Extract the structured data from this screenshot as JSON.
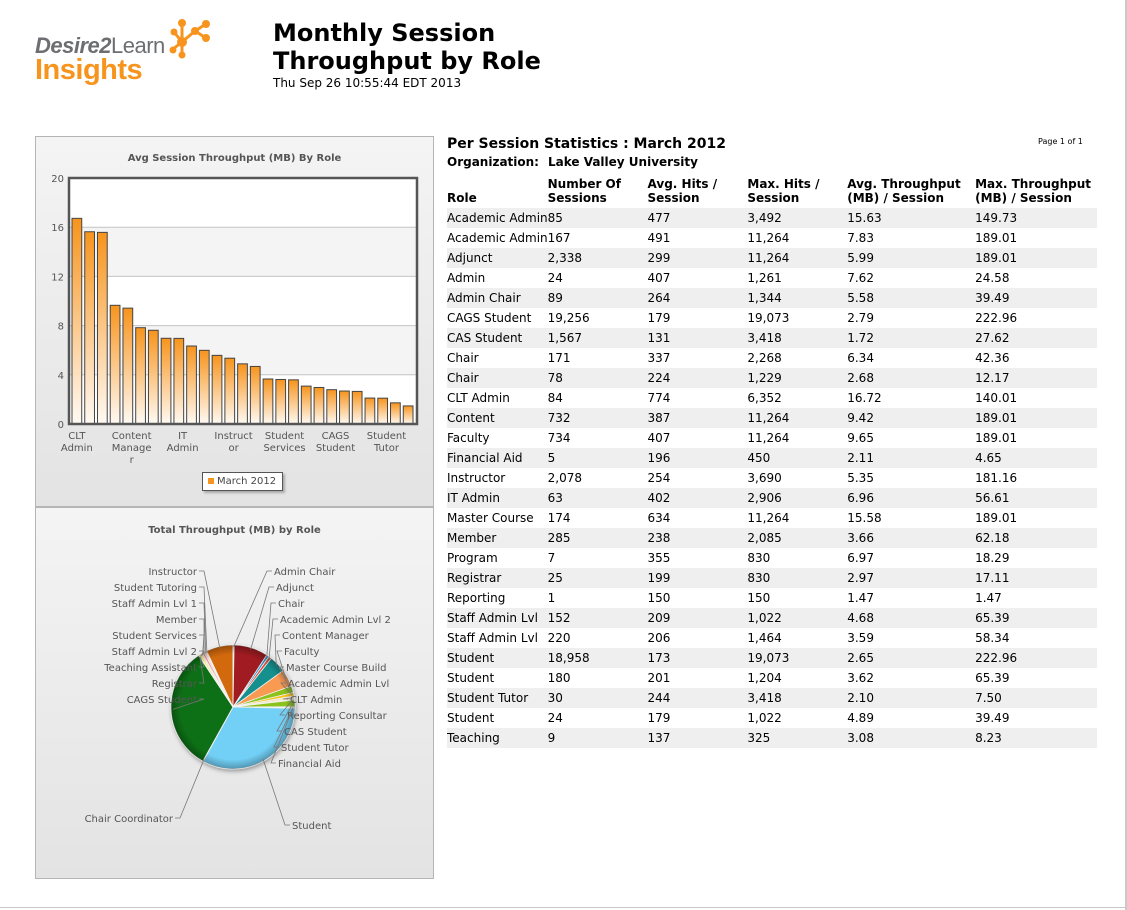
{
  "header": {
    "logo_brand": "Desire2",
    "logo_brand_suffix": "Learn",
    "logo_product": "Insights",
    "title_line1": "Monthly Session",
    "title_line2": "Throughput by Role",
    "timestamp": "Thu Sep 26 10:55:44 EDT 2013"
  },
  "colors": {
    "accent": "#f7941d",
    "logo_gray": "#6d6e71"
  },
  "report": {
    "heading": "Per Session Statistics : March 2012",
    "org_label": "Organization:",
    "org_value": "Lake Valley University",
    "page_label": "Page 1 of 1",
    "columns": [
      "Role",
      "Number Of Sessions",
      "Avg. Hits / Session",
      "Max. Hits / Session",
      "Avg. Throughput (MB) / Session",
      "Max. Throughput (MB) / Session"
    ],
    "rows": [
      [
        "Academic Admin",
        "85",
        "477",
        "3,492",
        "15.63",
        "149.73"
      ],
      [
        "Academic Admin",
        "167",
        "491",
        "11,264",
        "7.83",
        "189.01"
      ],
      [
        "Adjunct",
        "2,338",
        "299",
        "11,264",
        "5.99",
        "189.01"
      ],
      [
        "Admin",
        "24",
        "407",
        "1,261",
        "7.62",
        "24.58"
      ],
      [
        "Admin Chair",
        "89",
        "264",
        "1,344",
        "5.58",
        "39.49"
      ],
      [
        "CAGS Student",
        "19,256",
        "179",
        "19,073",
        "2.79",
        "222.96"
      ],
      [
        "CAS Student",
        "1,567",
        "131",
        "3,418",
        "1.72",
        "27.62"
      ],
      [
        "Chair",
        "171",
        "337",
        "2,268",
        "6.34",
        "42.36"
      ],
      [
        "Chair",
        "78",
        "224",
        "1,229",
        "2.68",
        "12.17"
      ],
      [
        "CLT Admin",
        "84",
        "774",
        "6,352",
        "16.72",
        "140.01"
      ],
      [
        "Content",
        "732",
        "387",
        "11,264",
        "9.42",
        "189.01"
      ],
      [
        "Faculty",
        "734",
        "407",
        "11,264",
        "9.65",
        "189.01"
      ],
      [
        "Financial Aid",
        "5",
        "196",
        "450",
        "2.11",
        "4.65"
      ],
      [
        "Instructor",
        "2,078",
        "254",
        "3,690",
        "5.35",
        "181.16"
      ],
      [
        "IT Admin",
        "63",
        "402",
        "2,906",
        "6.96",
        "56.61"
      ],
      [
        "Master Course",
        "174",
        "634",
        "11,264",
        "15.58",
        "189.01"
      ],
      [
        "Member",
        "285",
        "238",
        "2,085",
        "3.66",
        "62.18"
      ],
      [
        "Program",
        "7",
        "355",
        "830",
        "6.97",
        "18.29"
      ],
      [
        "Registrar",
        "25",
        "199",
        "830",
        "2.97",
        "17.11"
      ],
      [
        "Reporting",
        "1",
        "150",
        "150",
        "1.47",
        "1.47"
      ],
      [
        "Staff Admin Lvl",
        "152",
        "209",
        "1,022",
        "4.68",
        "65.39"
      ],
      [
        "Staff Admin Lvl",
        "220",
        "206",
        "1,464",
        "3.59",
        "58.34"
      ],
      [
        "Student",
        "18,958",
        "173",
        "19,073",
        "2.65",
        "222.96"
      ],
      [
        "Student",
        "180",
        "201",
        "1,204",
        "3.62",
        "65.39"
      ],
      [
        "Student Tutor",
        "30",
        "244",
        "3,418",
        "2.10",
        "7.50"
      ],
      [
        "Student",
        "24",
        "179",
        "1,022",
        "4.89",
        "39.49"
      ],
      [
        "Teaching",
        "9",
        "137",
        "325",
        "3.08",
        "8.23"
      ]
    ]
  },
  "chart_data": [
    {
      "type": "bar",
      "title": "Avg Session Throughput (MB) By Role",
      "xlabel": "",
      "ylabel": "",
      "ylim": [
        0,
        20
      ],
      "yticks": [
        "0",
        "4",
        "8",
        "12",
        "16",
        "20"
      ],
      "grid": true,
      "legend": {
        "entries": [
          "March 2012"
        ],
        "placement": "bottom-center"
      },
      "series": [
        {
          "name": "March 2012",
          "color": "#f7941d",
          "values": [
            16.72,
            15.63,
            15.58,
            9.65,
            9.42,
            7.83,
            7.62,
            6.97,
            6.96,
            6.34,
            5.99,
            5.58,
            5.35,
            4.89,
            4.68,
            3.66,
            3.62,
            3.59,
            3.08,
            2.97,
            2.79,
            2.68,
            2.65,
            2.11,
            2.1,
            1.72,
            1.47
          ]
        }
      ],
      "categories": [
        "CLT Admin",
        "Academic Admin Lvl 2",
        "Master Course Builder",
        "Faculty",
        "Content Manager",
        "Academic Admin",
        "Admin",
        "Program",
        "IT Admin",
        "Chair",
        "Adjunct",
        "Admin Chair",
        "Instructor",
        "Student",
        "Staff Admin Lvl 1",
        "Member",
        "Student Services",
        "Staff Admin Lvl 2",
        "Teaching Assistant",
        "Registrar",
        "CAGS Student",
        "Chair Coordinator",
        "Student",
        "Financial Aid",
        "Student Tutor",
        "CAS Student",
        "Reporting Consultant"
      ],
      "tick_labels": [
        {
          "index": 0,
          "lines": [
            "CLT",
            "Admin"
          ]
        },
        {
          "index": 4,
          "lines": [
            "Content",
            "Manage",
            "r"
          ]
        },
        {
          "index": 8,
          "lines": [
            "IT",
            "Admin"
          ]
        },
        {
          "index": 12,
          "lines": [
            "Instruct",
            "or"
          ]
        },
        {
          "index": 16,
          "lines": [
            "Student",
            "Services"
          ]
        },
        {
          "index": 20,
          "lines": [
            "CAGS",
            "Student"
          ]
        },
        {
          "index": 24,
          "lines": [
            "Student",
            "Tutor"
          ]
        }
      ]
    },
    {
      "type": "pie",
      "title": "Total Throughput (MB) by Role",
      "slices": [
        {
          "label": "Instructor",
          "value": 7.2,
          "color": "#d2690f",
          "side": "left"
        },
        {
          "label": "Admin Chair",
          "value": 0.3,
          "color": "#f3d9a8",
          "side": "right"
        },
        {
          "label": "Adjunct",
          "value": 9.1,
          "color": "#a01a20",
          "side": "right"
        },
        {
          "label": "Chair",
          "value": 0.7,
          "color": "#2a8fd0",
          "side": "right"
        },
        {
          "label": "Academic Admin Lvl 2",
          "value": 0.8,
          "color": "#d94f3a",
          "side": "right"
        },
        {
          "label": "Content Manager",
          "value": 4.5,
          "color": "#12908f",
          "side": "right"
        },
        {
          "label": "Faculty",
          "value": 4.6,
          "color": "#f99a52",
          "side": "right"
        },
        {
          "label": "Master Course Builder",
          "value": 1.8,
          "color": "#8cc21d",
          "side": "right"
        },
        {
          "label": "Academic Admin Lvl",
          "value": 0.9,
          "color": "#f7c51e",
          "side": "right"
        },
        {
          "label": "CLT Admin",
          "value": 0.9,
          "color": "#f3e6c0",
          "side": "right"
        },
        {
          "label": "Reporting Consultant",
          "value": 0.2,
          "color": "#c8c8c8",
          "side": "right"
        },
        {
          "label": "CAS Student",
          "value": 1.8,
          "color": "#8cc21d",
          "side": "right"
        },
        {
          "label": "Student Tutor",
          "value": 0.3,
          "color": "#f3d9a8",
          "side": "right"
        },
        {
          "label": "Financial Aid",
          "value": 0.1,
          "color": "#e9e9e9",
          "side": "right"
        },
        {
          "label": "Student",
          "value": 33.5,
          "color": "#72cff5",
          "side": "right"
        },
        {
          "label": "Chair Coordinator",
          "value": 0.1,
          "color": "#e3e3e3",
          "side": "left"
        },
        {
          "label": "CAGS Student",
          "value": 33.4,
          "color": "#0f6f12",
          "side": "left"
        },
        {
          "label": "Registrar",
          "value": 0.1,
          "color": "#ffffff",
          "side": "left"
        },
        {
          "label": "Teaching Assistant",
          "value": 0.1,
          "color": "#d0d0d0",
          "side": "left"
        },
        {
          "label": "Staff Admin Lvl 2",
          "value": 0.5,
          "color": "#f7e93a",
          "side": "left"
        },
        {
          "label": "Student Services",
          "value": 0.4,
          "color": "#f3d9a8",
          "side": "left"
        },
        {
          "label": "Member",
          "value": 0.6,
          "color": "#f08b9a",
          "side": "left"
        },
        {
          "label": "Staff Admin Lvl 1",
          "value": 0.4,
          "color": "#f5c2a0",
          "side": "left"
        },
        {
          "label": "Student Tutoring",
          "value": 0.3,
          "color": "#fbe4b4",
          "side": "left"
        }
      ],
      "left_labels": [
        "Instructor",
        "Student Tutoring",
        "Staff Admin Lvl 1",
        "Member",
        "Student Services",
        "Staff Admin Lvl 2",
        "Teaching Assistant",
        "Registrar",
        "CAGS Student"
      ],
      "right_labels": [
        "Admin Chair",
        "Adjunct",
        "Chair",
        "Academic Admin Lvl 2",
        "Content Manager",
        "Faculty",
        "Master Course Build",
        "Academic Admin Lvl",
        "CLT Admin",
        "Reporting Consultar",
        "CAS Student",
        "Student Tutor",
        "Financial Aid"
      ],
      "bottom_left_label": "Chair Coordinator",
      "bottom_right_label": "Student"
    }
  ]
}
